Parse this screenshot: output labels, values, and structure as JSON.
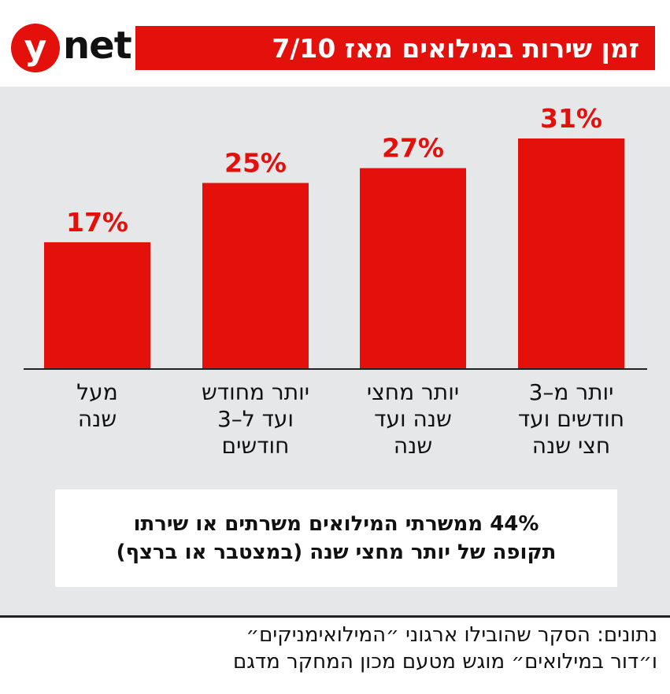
{
  "header": {
    "logo_y": "y",
    "logo_net": "net",
    "title": "זמן שירות במילואים מאז 7/10"
  },
  "chart_data": {
    "type": "bar",
    "title": "זמן שירות במילואים מאז 7/10",
    "categories": [
      "מעל שנה",
      "יותר מחודש ועד ל–3 חודשים",
      "יותר מחצי שנה ועד שנה",
      "יותר מ–3 חודשים ועד חצי שנה"
    ],
    "category_lines": [
      "מעל\nשנה",
      "יותר מחודש\nועד ל–3\nחודשים",
      "יותר מחצי\nשנה ועד\nשנה",
      "יותר מ–3\nחודשים ועד\nחצי שנה"
    ],
    "values": [
      17,
      25,
      27,
      31
    ],
    "value_labels": [
      "17%",
      "25%",
      "27%",
      "31%"
    ],
    "ylim": [
      0,
      31
    ],
    "xlabel": "",
    "ylabel": "",
    "bar_color": "#e3100c",
    "label_color": "#e3100c",
    "grid": false
  },
  "note": {
    "line1": "44% ממשרתי המילואים משרתים או שירתו",
    "line2": "תקופה של יותר מחצי שנה (במצטבר או ברצף)"
  },
  "source": {
    "line1": "נתונים: הסקר שהובילו ארגוני ״המילואימניקים״",
    "line2": "ו״דור במילואים״ מוגש מטעם מכון המחקר מדגם"
  },
  "colors": {
    "accent": "#e3100c",
    "background": "#e6e7e8"
  }
}
